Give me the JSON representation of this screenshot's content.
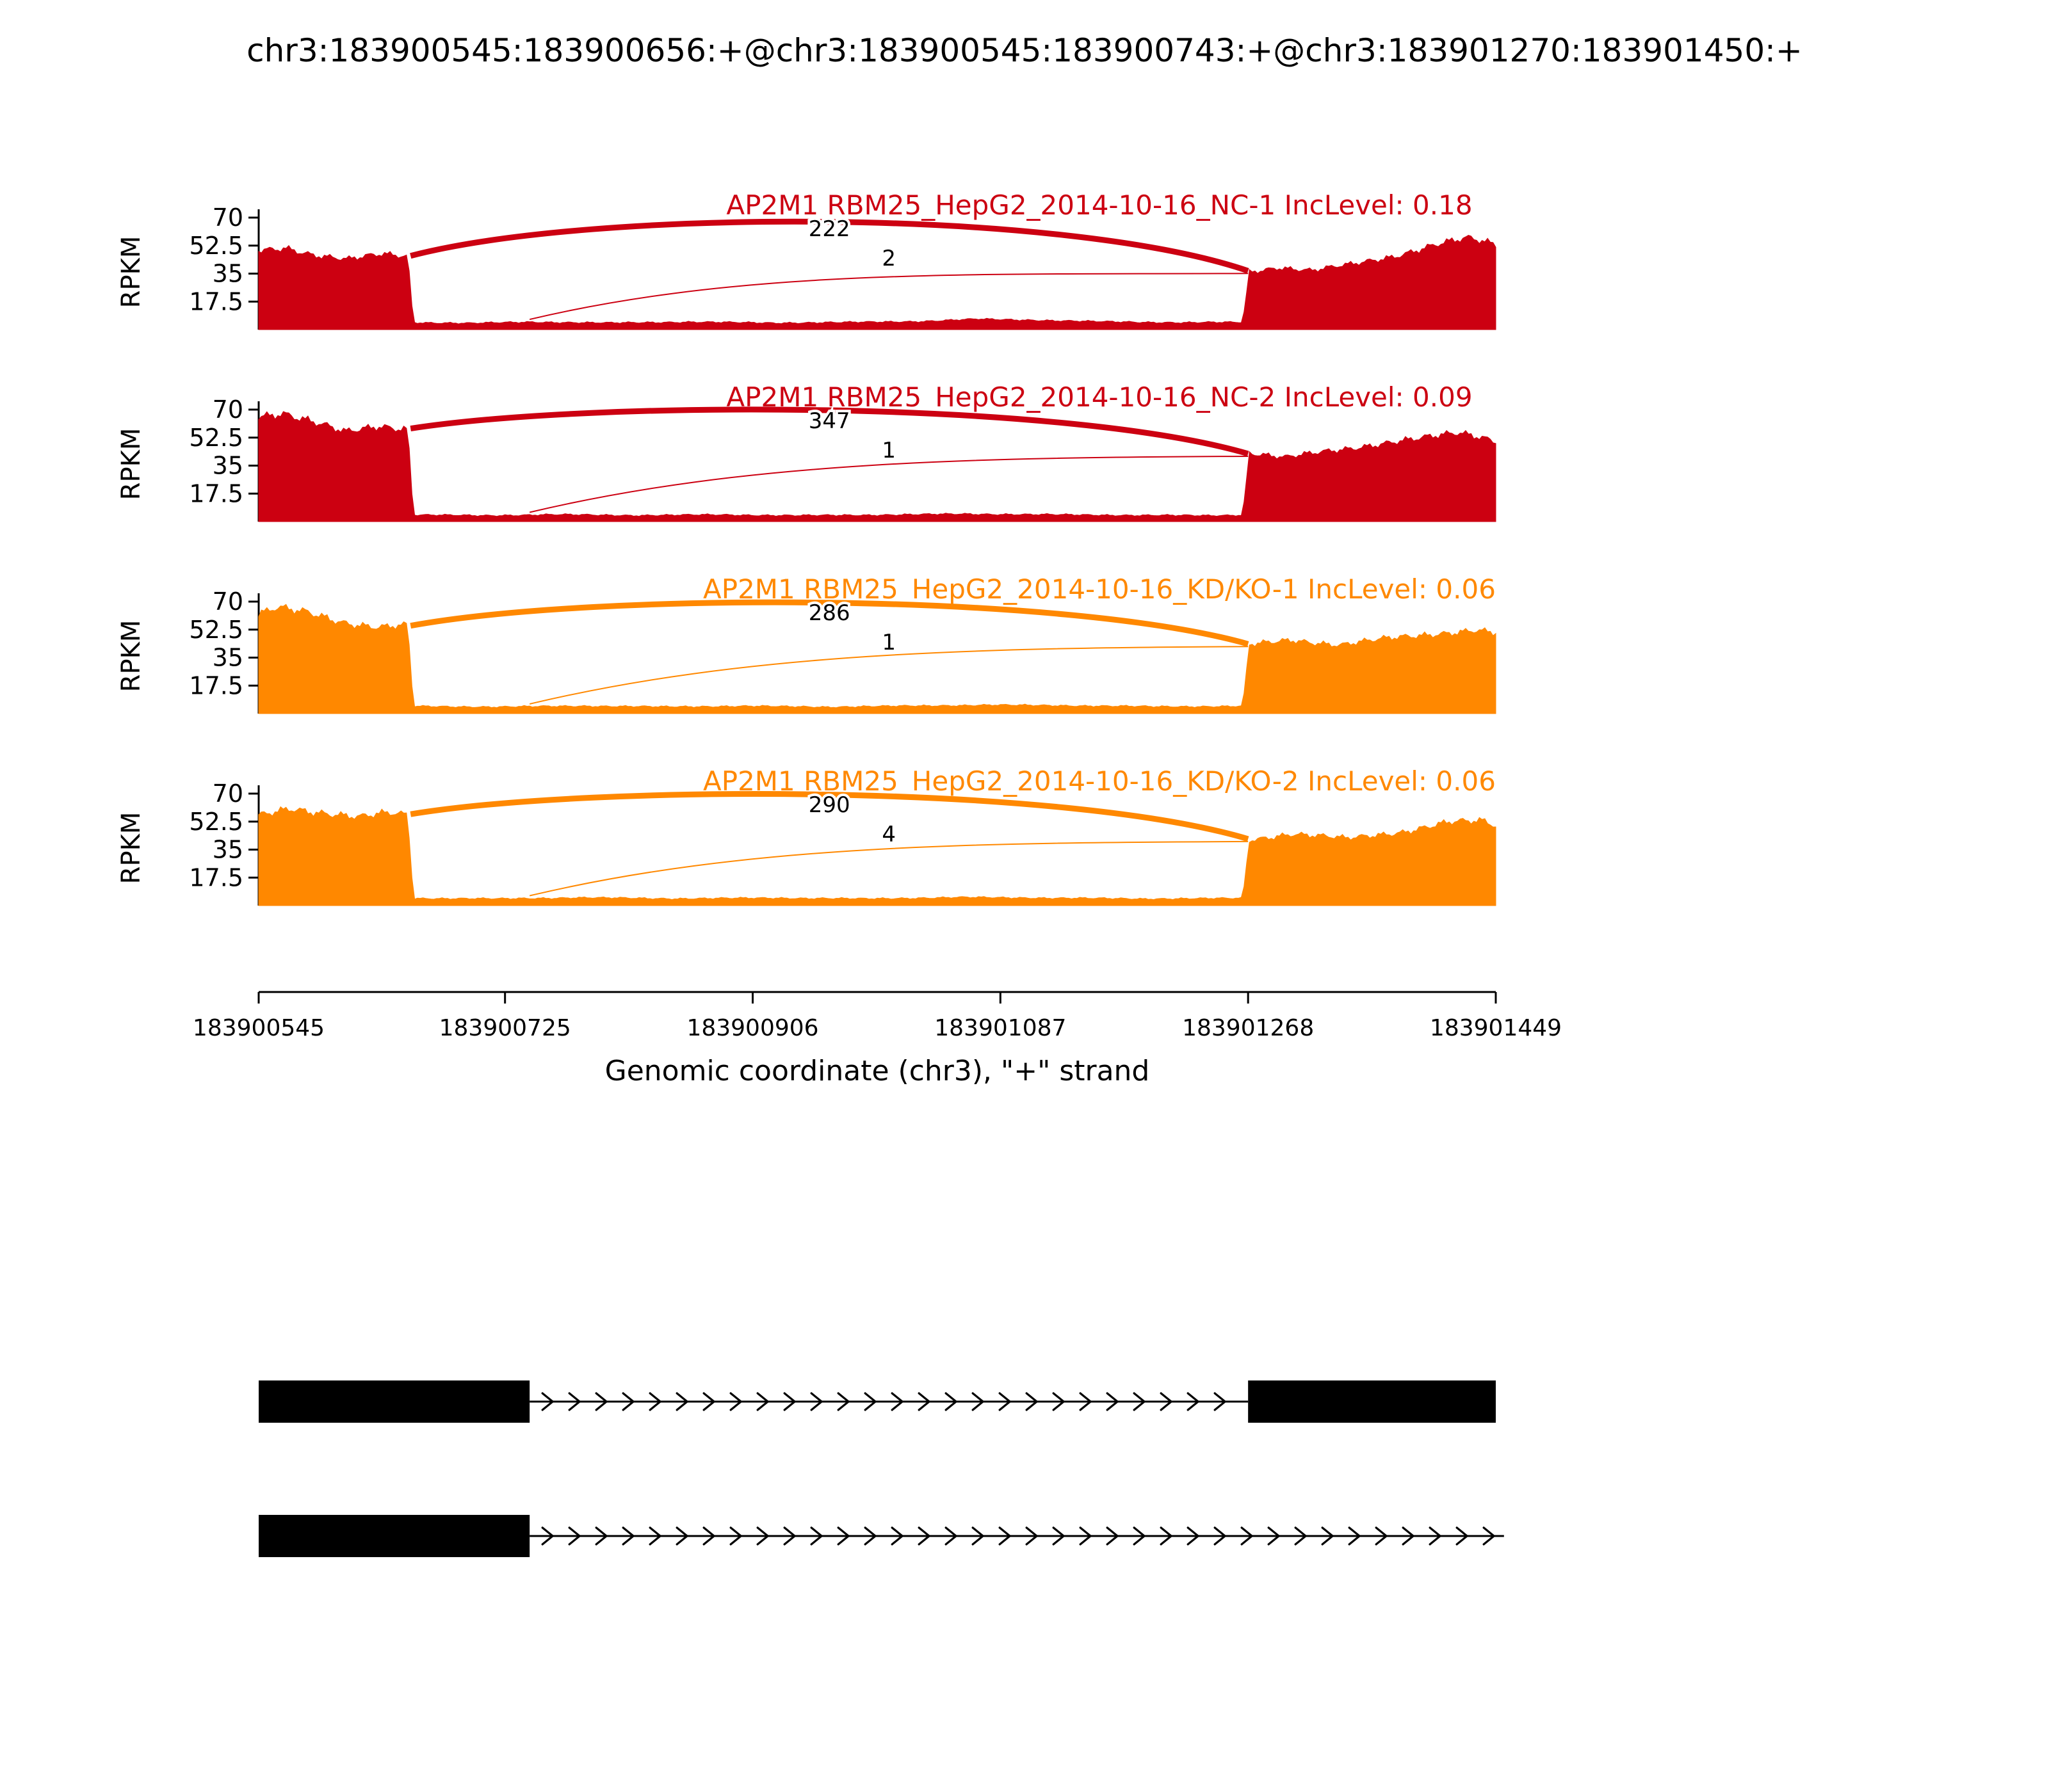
{
  "title": "chr3:183900545:183900656:+@chr3:183900545:183900743:+@chr3:183901270:183901450:+",
  "chart_data": {
    "type": "area",
    "subtype": "sashimi-plot",
    "xlabel": "Genomic coordinate (chr3), \"+\" strand",
    "ylabel": "RPKM",
    "x_range": [
      183900545,
      183901449
    ],
    "ylim": [
      0,
      70
    ],
    "y_max": 70,
    "x_ticks": [
      "183900545",
      "183900725",
      "183900906",
      "183901087",
      "183901268",
      "183901449"
    ],
    "y_ticks": [
      "17.5",
      "35",
      "52.5",
      "70"
    ],
    "grid": false,
    "tracks": [
      {
        "title": "AP2M1 RBM25_HepG2_2014-10-16_NC-1 IncLevel: 0.18",
        "sample": "NC-1",
        "inc_level": 0.18,
        "color": "#CC0011",
        "junctions": [
          {
            "from": 183900656,
            "to": 183901268,
            "count": 222
          },
          {
            "from": 183900743,
            "to": 183901268,
            "count": 2
          }
        ],
        "coverage": [
          [
            183900545,
            49
          ],
          [
            183900565,
            51
          ],
          [
            183900585,
            47
          ],
          [
            183900610,
            44
          ],
          [
            183900635,
            47
          ],
          [
            183900654,
            46
          ],
          [
            183900658,
            4.5
          ],
          [
            183900700,
            4.0
          ],
          [
            183900745,
            4.8
          ],
          [
            183900800,
            4.2
          ],
          [
            183900860,
            4.8
          ],
          [
            183900920,
            4.2
          ],
          [
            183900980,
            4.6
          ],
          [
            183901030,
            5.2
          ],
          [
            183901070,
            6.6
          ],
          [
            183901110,
            6.0
          ],
          [
            183901160,
            5.0
          ],
          [
            183901220,
            4.4
          ],
          [
            183901264,
            4.6
          ],
          [
            183901269,
            36
          ],
          [
            183901290,
            39
          ],
          [
            183901315,
            37
          ],
          [
            183901345,
            41
          ],
          [
            183901375,
            46
          ],
          [
            183901405,
            53
          ],
          [
            183901428,
            57
          ],
          [
            183901442,
            55
          ],
          [
            183901449,
            53
          ]
        ]
      },
      {
        "title": "AP2M1 RBM25_HepG2_2014-10-16_NC-2 IncLevel: 0.09",
        "sample": "NC-2",
        "inc_level": 0.09,
        "color": "#CC0011",
        "junctions": [
          {
            "from": 183900656,
            "to": 183901268,
            "count": 347
          },
          {
            "from": 183900743,
            "to": 183901268,
            "count": 1
          }
        ],
        "coverage": [
          [
            183900545,
            66
          ],
          [
            183900562,
            68
          ],
          [
            183900585,
            62
          ],
          [
            183900608,
            56
          ],
          [
            183900632,
            60
          ],
          [
            183900654,
            58
          ],
          [
            183900658,
            4.2
          ],
          [
            183900710,
            3.8
          ],
          [
            183900760,
            4.4
          ],
          [
            183900820,
            3.9
          ],
          [
            183900880,
            4.3
          ],
          [
            183900940,
            3.8
          ],
          [
            183901000,
            4.2
          ],
          [
            183901060,
            4.8
          ],
          [
            183901120,
            4.4
          ],
          [
            183901180,
            4.0
          ],
          [
            183901240,
            3.8
          ],
          [
            183901264,
            4.2
          ],
          [
            183901269,
            43
          ],
          [
            183901295,
            40
          ],
          [
            183901325,
            44
          ],
          [
            183901360,
            48
          ],
          [
            183901395,
            52
          ],
          [
            183901422,
            56
          ],
          [
            183901440,
            53
          ],
          [
            183901449,
            50
          ]
        ]
      },
      {
        "title": "AP2M1 RBM25_HepG2_2014-10-16_KD/KO-1 IncLevel: 0.06",
        "sample": "KD/KO-1",
        "inc_level": 0.06,
        "color": "#FF8800",
        "junctions": [
          {
            "from": 183900656,
            "to": 183901268,
            "count": 286
          },
          {
            "from": 183900743,
            "to": 183901268,
            "count": 1
          }
        ],
        "coverage": [
          [
            183900545,
            62
          ],
          [
            183900558,
            66
          ],
          [
            183900582,
            63
          ],
          [
            183900608,
            57
          ],
          [
            183900632,
            54
          ],
          [
            183900654,
            55
          ],
          [
            183900658,
            4.6
          ],
          [
            183900720,
            4.2
          ],
          [
            183900780,
            4.8
          ],
          [
            183900840,
            4.3
          ],
          [
            183900900,
            4.7
          ],
          [
            183900960,
            4.2
          ],
          [
            183901020,
            4.8
          ],
          [
            183901080,
            5.4
          ],
          [
            183901140,
            5.0
          ],
          [
            183901200,
            4.4
          ],
          [
            183901264,
            4.6
          ],
          [
            183901269,
            43
          ],
          [
            183901300,
            46
          ],
          [
            183901335,
            43
          ],
          [
            183901370,
            47
          ],
          [
            183901405,
            50
          ],
          [
            183901435,
            52
          ],
          [
            183901449,
            50
          ]
        ]
      },
      {
        "title": "AP2M1 RBM25_HepG2_2014-10-16_KD/KO-2 IncLevel: 0.06",
        "sample": "KD/KO-2",
        "inc_level": 0.06,
        "color": "#FF8800",
        "junctions": [
          {
            "from": 183900656,
            "to": 183901268,
            "count": 290
          },
          {
            "from": 183900743,
            "to": 183901268,
            "count": 4
          }
        ],
        "coverage": [
          [
            183900545,
            56
          ],
          [
            183900568,
            61
          ],
          [
            183900592,
            58
          ],
          [
            183900618,
            55
          ],
          [
            183900640,
            58
          ],
          [
            183900654,
            57
          ],
          [
            183900658,
            4.6
          ],
          [
            183900720,
            4.3
          ],
          [
            183900780,
            5.0
          ],
          [
            183900850,
            4.4
          ],
          [
            183900920,
            4.8
          ],
          [
            183900990,
            4.3
          ],
          [
            183901060,
            5.2
          ],
          [
            183901120,
            4.8
          ],
          [
            183901190,
            4.3
          ],
          [
            183901264,
            4.6
          ],
          [
            183901269,
            41
          ],
          [
            183901300,
            45
          ],
          [
            183901340,
            42
          ],
          [
            183901380,
            46
          ],
          [
            183901415,
            52
          ],
          [
            183901440,
            53
          ],
          [
            183901449,
            50
          ]
        ]
      }
    ]
  },
  "isoforms": {
    "color": "#000000",
    "rows": [
      {
        "exons": [
          [
            183900545,
            183900743
          ],
          [
            183901268,
            183901449
          ]
        ],
        "intron": [
          183900743,
          183901268
        ]
      },
      {
        "exons": [
          [
            183900545,
            183900743
          ]
        ],
        "intron": [
          183900743,
          183901455
        ]
      }
    ]
  }
}
